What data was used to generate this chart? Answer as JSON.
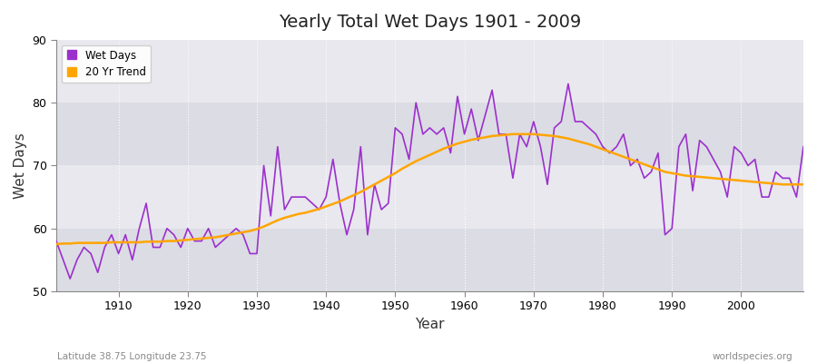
{
  "title": "Yearly Total Wet Days 1901 - 2009",
  "xlabel": "Year",
  "ylabel": "Wet Days",
  "subtitle_left": "Latitude 38.75 Longitude 23.75",
  "subtitle_right": "worldspecies.org",
  "wet_days_color": "#9B30CC",
  "trend_color": "#FFA500",
  "bg_color": "#FFFFFF",
  "plot_bg_color": "#E8E8EC",
  "ylim": [
    50,
    90
  ],
  "xlim": [
    1901,
    2009
  ],
  "years": [
    1901,
    1902,
    1903,
    1904,
    1905,
    1906,
    1907,
    1908,
    1909,
    1910,
    1911,
    1912,
    1913,
    1914,
    1915,
    1916,
    1917,
    1918,
    1919,
    1920,
    1921,
    1922,
    1923,
    1924,
    1925,
    1926,
    1927,
    1928,
    1929,
    1930,
    1931,
    1932,
    1933,
    1934,
    1935,
    1936,
    1937,
    1938,
    1939,
    1940,
    1941,
    1942,
    1943,
    1944,
    1945,
    1946,
    1947,
    1948,
    1949,
    1950,
    1951,
    1952,
    1953,
    1954,
    1955,
    1956,
    1957,
    1958,
    1959,
    1960,
    1961,
    1962,
    1963,
    1964,
    1965,
    1966,
    1967,
    1968,
    1969,
    1970,
    1971,
    1972,
    1973,
    1974,
    1975,
    1976,
    1977,
    1978,
    1979,
    1980,
    1981,
    1982,
    1983,
    1984,
    1985,
    1986,
    1987,
    1988,
    1989,
    1990,
    1991,
    1992,
    1993,
    1994,
    1995,
    1996,
    1997,
    1998,
    1999,
    2000,
    2001,
    2002,
    2003,
    2004,
    2005,
    2006,
    2007,
    2008,
    2009
  ],
  "wet_days": [
    58,
    55,
    52,
    55,
    57,
    56,
    53,
    57,
    59,
    56,
    59,
    55,
    60,
    64,
    57,
    57,
    60,
    59,
    57,
    60,
    58,
    58,
    60,
    57,
    58,
    59,
    60,
    59,
    56,
    56,
    70,
    62,
    73,
    63,
    65,
    65,
    65,
    64,
    63,
    65,
    71,
    64,
    59,
    63,
    73,
    59,
    67,
    63,
    64,
    76,
    75,
    71,
    80,
    75,
    76,
    75,
    76,
    72,
    81,
    75,
    79,
    74,
    78,
    82,
    75,
    75,
    68,
    75,
    73,
    77,
    73,
    67,
    76,
    77,
    83,
    77,
    77,
    76,
    75,
    73,
    72,
    73,
    75,
    70,
    71,
    68,
    69,
    72,
    59,
    60,
    73,
    75,
    66,
    74,
    73,
    71,
    69,
    65,
    73,
    72,
    70,
    71,
    65,
    65,
    69,
    68,
    68,
    65,
    73
  ],
  "trend": [
    57.5,
    57.6,
    57.6,
    57.7,
    57.7,
    57.7,
    57.7,
    57.7,
    57.8,
    57.8,
    57.8,
    57.8,
    57.8,
    57.9,
    57.9,
    57.9,
    58.0,
    58.0,
    58.1,
    58.2,
    58.3,
    58.4,
    58.5,
    58.6,
    58.8,
    59.0,
    59.2,
    59.4,
    59.6,
    59.9,
    60.3,
    60.8,
    61.3,
    61.7,
    62.0,
    62.3,
    62.5,
    62.8,
    63.1,
    63.5,
    63.9,
    64.3,
    64.8,
    65.3,
    65.8,
    66.4,
    67.0,
    67.6,
    68.2,
    68.8,
    69.5,
    70.1,
    70.7,
    71.2,
    71.7,
    72.2,
    72.7,
    73.1,
    73.5,
    73.8,
    74.1,
    74.3,
    74.5,
    74.7,
    74.8,
    74.9,
    75.0,
    75.0,
    75.0,
    75.0,
    74.9,
    74.8,
    74.7,
    74.5,
    74.3,
    74.0,
    73.7,
    73.4,
    73.0,
    72.6,
    72.2,
    71.8,
    71.4,
    71.0,
    70.6,
    70.2,
    69.8,
    69.4,
    69.0,
    68.8,
    68.6,
    68.4,
    68.3,
    68.2,
    68.1,
    68.0,
    67.9,
    67.8,
    67.7,
    67.6,
    67.5,
    67.4,
    67.3,
    67.2,
    67.1,
    67.0,
    67.0,
    67.0,
    67.0
  ]
}
